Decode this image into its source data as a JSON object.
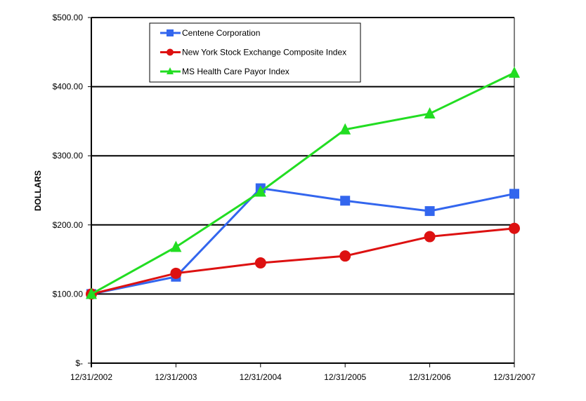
{
  "chart_data": {
    "type": "line",
    "title": "",
    "xlabel": "",
    "ylabel": "DOLLARS",
    "categories": [
      "12/31/2002",
      "12/31/2003",
      "12/31/2004",
      "12/31/2005",
      "12/31/2006",
      "12/31/2007"
    ],
    "ylim": [
      0,
      500
    ],
    "yticks": [
      0,
      100,
      200,
      300,
      400,
      500
    ],
    "ytick_labels": [
      "$-",
      "$100.00",
      "$200.00",
      "$300.00",
      "$400.00",
      "$500.00"
    ],
    "grid": true,
    "legend_placement": "top-center",
    "series": [
      {
        "name": "Centene Corporation",
        "color": "#3366ee",
        "marker": "square",
        "values": [
          100,
          125,
          253,
          235,
          220,
          245
        ]
      },
      {
        "name": "New York Stock Exchange Composite Index",
        "color": "#dd1111",
        "marker": "circle",
        "values": [
          100,
          130,
          145,
          155,
          183,
          195
        ]
      },
      {
        "name": "MS Health Care Payor Index",
        "color": "#22dd22",
        "marker": "triangle",
        "values": [
          100,
          168,
          248,
          338,
          361,
          420
        ]
      }
    ]
  }
}
